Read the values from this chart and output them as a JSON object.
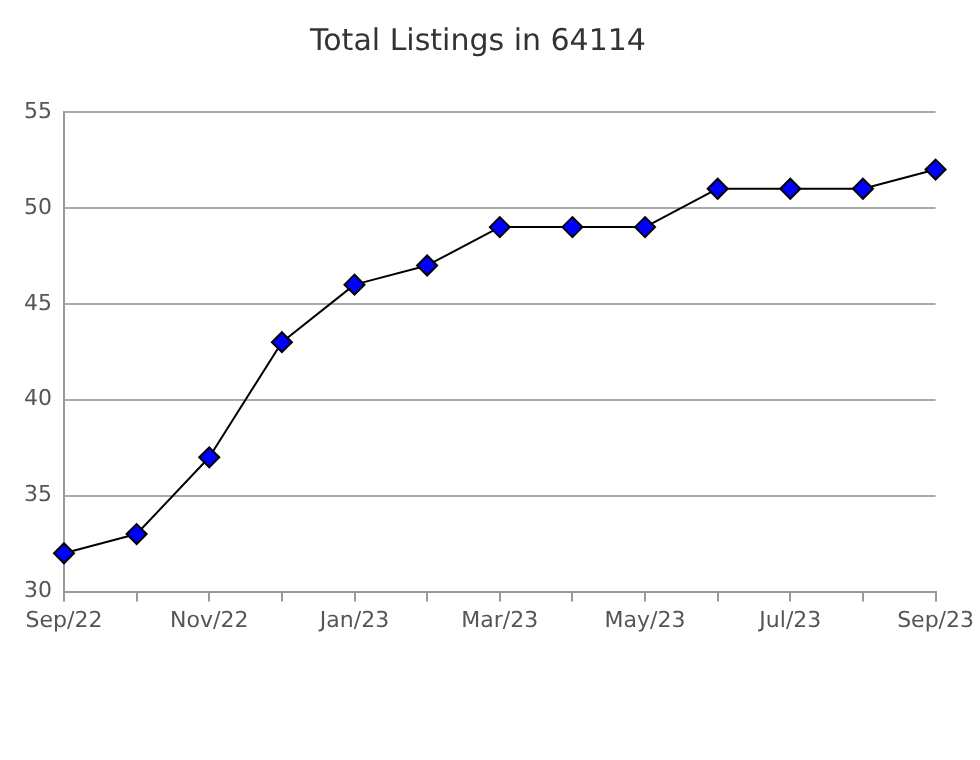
{
  "chart_data": {
    "type": "line",
    "title": "Total Listings in 64114",
    "categories": [
      "Sep/22",
      null,
      "Nov/22",
      null,
      "Jan/23",
      null,
      "Mar/23",
      null,
      "May/23",
      null,
      "Jul/23",
      null,
      "Sep/23"
    ],
    "series": [
      {
        "color": "#0000ff",
        "values": [
          32,
          33,
          37,
          43,
          46,
          47,
          49,
          49,
          49,
          51,
          51,
          51,
          52
        ]
      }
    ],
    "ylim": [
      30,
      55
    ],
    "yticks": [
      30,
      35,
      40,
      45,
      50,
      55
    ],
    "grid": "y",
    "marker": "diamond",
    "line_style": "solid",
    "legend": false
  }
}
